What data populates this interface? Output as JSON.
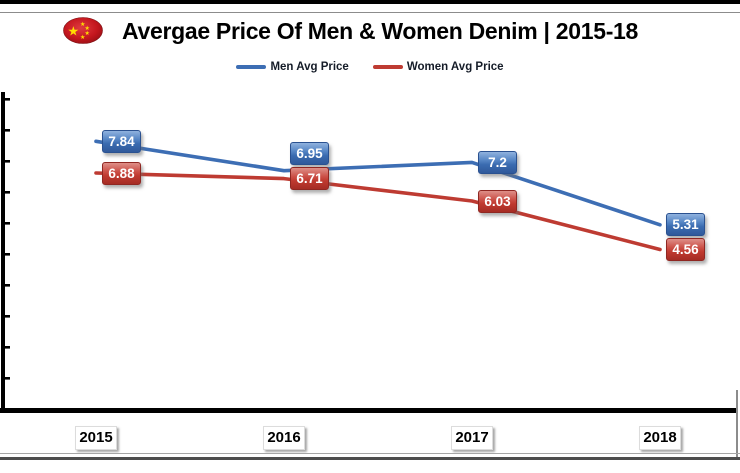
{
  "header": {
    "flag_icon": "china-flag",
    "flag_colors": {
      "red": "#c3161d",
      "yellow": "#ffde00"
    }
  },
  "chart_data": {
    "type": "line",
    "title": "Avergae Price Of Men & Women Denim | 2015-18",
    "categories": [
      "2015",
      "2016",
      "2017",
      "2018"
    ],
    "series": [
      {
        "name": "Men Avg Price",
        "color": "#3d6eb4",
        "values": [
          7.84,
          6.95,
          7.2,
          5.31
        ]
      },
      {
        "name": "Women Avg Price",
        "color": "#be3b32",
        "values": [
          6.88,
          6.71,
          6.03,
          4.56
        ]
      }
    ],
    "xlabel": "",
    "ylabel": "",
    "ylim": [
      0,
      10
    ],
    "grid": false,
    "legend_position": "top",
    "data_labels": true,
    "axis_color": "#000000"
  }
}
